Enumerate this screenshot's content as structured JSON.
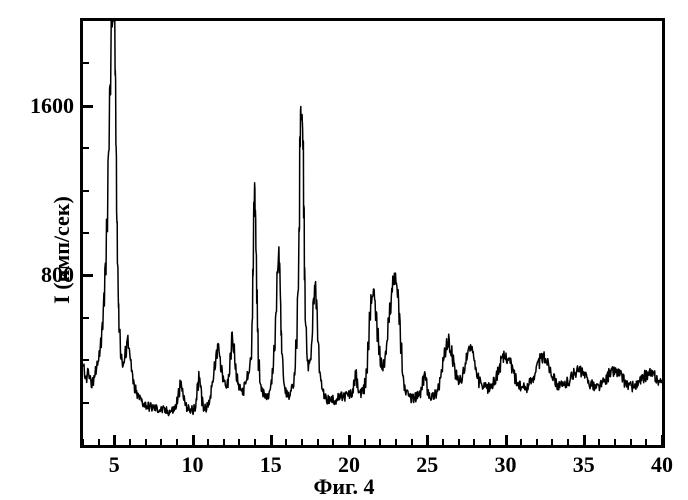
{
  "chart": {
    "type": "line",
    "caption": "Фиг. 4",
    "ylabel": "I (имп/сек)",
    "background_color": "#ffffff",
    "line_color": "#000000",
    "border_color": "#000000",
    "border_width": 3,
    "line_width": 1.5,
    "xlim": [
      3,
      40
    ],
    "ylim": [
      0,
      2000
    ],
    "xticks": [
      5,
      10,
      15,
      20,
      25,
      30,
      35,
      40
    ],
    "yticks": [
      800,
      1600
    ],
    "xtick_label_fontsize": 22,
    "ytick_label_fontsize": 22,
    "ylabel_fontsize": 22,
    "caption_fontsize": 22,
    "font_family": "Times New Roman",
    "font_weight": "bold",
    "tick_length_major": 10,
    "tick_length_minor": 6,
    "x_values": [
      3.0,
      3.1,
      3.2,
      3.3,
      3.4,
      3.5,
      3.6,
      3.7,
      3.8,
      3.9,
      4.0,
      4.1,
      4.2,
      4.3,
      4.4,
      4.5,
      4.6,
      4.7,
      4.8,
      4.9,
      5.0,
      5.05,
      5.1,
      5.15,
      5.2,
      5.25,
      5.3,
      5.4,
      5.5,
      5.6,
      5.7,
      5.8,
      5.9,
      6.0,
      6.1,
      6.2,
      6.3,
      6.4,
      6.5,
      6.6,
      6.7,
      6.8,
      6.9,
      7.0,
      7.1,
      7.2,
      7.3,
      7.4,
      7.5,
      7.6,
      7.7,
      7.8,
      7.9,
      8.0,
      8.1,
      8.2,
      8.3,
      8.4,
      8.5,
      8.6,
      8.7,
      8.8,
      8.9,
      9.0,
      9.1,
      9.2,
      9.3,
      9.4,
      9.5,
      9.6,
      9.7,
      9.8,
      9.9,
      10.0,
      10.1,
      10.2,
      10.3,
      10.4,
      10.5,
      10.6,
      10.7,
      10.8,
      10.9,
      11.0,
      11.1,
      11.2,
      11.3,
      11.4,
      11.5,
      11.6,
      11.7,
      11.8,
      11.9,
      12.0,
      12.1,
      12.2,
      12.3,
      12.4,
      12.5,
      12.6,
      12.7,
      12.8,
      12.9,
      13.0,
      13.1,
      13.2,
      13.3,
      13.4,
      13.5,
      13.6,
      13.7,
      13.8,
      13.85,
      13.9,
      13.95,
      14.0,
      14.05,
      14.1,
      14.15,
      14.2,
      14.3,
      14.4,
      14.5,
      14.6,
      14.7,
      14.8,
      14.9,
      15.0,
      15.1,
      15.2,
      15.3,
      15.4,
      15.5,
      15.55,
      15.6,
      15.65,
      15.7,
      15.8,
      15.9,
      16.0,
      16.1,
      16.2,
      16.3,
      16.4,
      16.5,
      16.6,
      16.7,
      16.8,
      16.85,
      16.9,
      16.95,
      17.0,
      17.05,
      17.1,
      17.15,
      17.2,
      17.3,
      17.4,
      17.5,
      17.6,
      17.7,
      17.8,
      17.9,
      18.0,
      18.1,
      18.2,
      18.3,
      18.4,
      18.5,
      18.6,
      18.7,
      18.8,
      18.9,
      19.0,
      19.1,
      19.2,
      19.3,
      19.4,
      19.5,
      19.6,
      19.7,
      19.8,
      19.9,
      20.0,
      20.1,
      20.2,
      20.3,
      20.4,
      20.5,
      20.6,
      20.7,
      20.8,
      20.9,
      21.0,
      21.1,
      21.2,
      21.3,
      21.4,
      21.5,
      21.6,
      21.7,
      21.8,
      21.9,
      22.0,
      22.1,
      22.2,
      22.3,
      22.4,
      22.5,
      22.6,
      22.7,
      22.8,
      22.9,
      23.0,
      23.1,
      23.2,
      23.3,
      23.4,
      23.5,
      23.6,
      23.7,
      23.8,
      23.9,
      24.0,
      24.1,
      24.2,
      24.3,
      24.4,
      24.5,
      24.6,
      24.7,
      24.8,
      24.9,
      25.0,
      25.1,
      25.2,
      25.3,
      25.4,
      25.5,
      25.6,
      25.7,
      25.8,
      25.9,
      26.0,
      26.1,
      26.2,
      26.3,
      26.4,
      26.5,
      26.6,
      26.7,
      26.8,
      26.9,
      27.0,
      27.1,
      27.2,
      27.3,
      27.4,
      27.5,
      27.6,
      27.7,
      27.8,
      27.9,
      28.0,
      28.1,
      28.2,
      28.3,
      28.4,
      28.5,
      28.6,
      28.7,
      28.8,
      28.9,
      29.0,
      29.1,
      29.2,
      29.3,
      29.4,
      29.5,
      29.6,
      29.7,
      29.8,
      29.9,
      30.0,
      30.1,
      30.2,
      30.3,
      30.4,
      30.5,
      30.6,
      30.7,
      30.8,
      30.9,
      31.0,
      31.1,
      31.2,
      31.3,
      31.4,
      31.5,
      31.6,
      31.7,
      31.8,
      31.9,
      32.0,
      32.1,
      32.2,
      32.3,
      32.4,
      32.5,
      32.6,
      32.7,
      32.8,
      32.9,
      33.0,
      33.1,
      33.2,
      33.3,
      33.4,
      33.5,
      33.6,
      33.7,
      33.8,
      33.9,
      34.0,
      34.1,
      34.2,
      34.3,
      34.4,
      34.5,
      34.6,
      34.7,
      34.8,
      34.9,
      35.0,
      35.1,
      35.2,
      35.3,
      35.4,
      35.5,
      35.6,
      35.7,
      35.8,
      35.9,
      36.0,
      36.1,
      36.2,
      36.3,
      36.4,
      36.5,
      36.6,
      36.7,
      36.8,
      36.9,
      37.0,
      37.1,
      37.2,
      37.3,
      37.4,
      37.5,
      37.6,
      37.7,
      37.8,
      37.9,
      38.0,
      38.1,
      38.2,
      38.3,
      38.4,
      38.5,
      38.6,
      38.7,
      38.8,
      38.9,
      39.0,
      39.1,
      39.2,
      39.3,
      39.4,
      39.5,
      39.6,
      39.7,
      39.8,
      39.9,
      40.0
    ],
    "y_values": [
      355,
      310,
      320,
      345,
      300,
      290,
      300,
      330,
      360,
      380,
      420,
      480,
      560,
      680,
      820,
      1050,
      1350,
      1700,
      2000,
      2150,
      2000,
      1750,
      1400,
      1100,
      860,
      680,
      540,
      430,
      380,
      390,
      440,
      500,
      480,
      400,
      330,
      290,
      260,
      240,
      230,
      220,
      210,
      200,
      195,
      190,
      185,
      182,
      180,
      178,
      176,
      174,
      172,
      170,
      168,
      166,
      164,
      162,
      160,
      160,
      160,
      162,
      164,
      170,
      185,
      210,
      250,
      280,
      260,
      225,
      195,
      178,
      170,
      168,
      166,
      164,
      168,
      200,
      270,
      330,
      280,
      210,
      180,
      170,
      180,
      200,
      235,
      275,
      320,
      370,
      430,
      490,
      430,
      370,
      320,
      290,
      270,
      290,
      350,
      430,
      510,
      450,
      370,
      310,
      280,
      260,
      255,
      260,
      275,
      295,
      320,
      360,
      430,
      560,
      800,
      1100,
      1200,
      1100,
      900,
      700,
      520,
      380,
      300,
      260,
      240,
      230,
      225,
      230,
      250,
      290,
      350,
      450,
      620,
      830,
      900,
      830,
      700,
      550,
      410,
      310,
      265,
      245,
      240,
      245,
      260,
      290,
      350,
      470,
      700,
      1050,
      1400,
      1550,
      1600,
      1550,
      1400,
      1100,
      800,
      560,
      420,
      370,
      400,
      500,
      670,
      780,
      650,
      480,
      350,
      280,
      250,
      230,
      220,
      215,
      212,
      210,
      210,
      212,
      215,
      218,
      222,
      225,
      228,
      230,
      232,
      234,
      236,
      238,
      240,
      250,
      280,
      330,
      290,
      255,
      240,
      245,
      260,
      290,
      350,
      470,
      620,
      700,
      720,
      700,
      620,
      520,
      440,
      390,
      370,
      380,
      420,
      490,
      570,
      650,
      720,
      780,
      800,
      770,
      700,
      590,
      460,
      350,
      280,
      250,
      235,
      228,
      224,
      222,
      222,
      224,
      228,
      234,
      242,
      260,
      300,
      340,
      300,
      260,
      240,
      232,
      230,
      234,
      244,
      260,
      280,
      310,
      350,
      390,
      430,
      470,
      490,
      470,
      440,
      400,
      360,
      330,
      310,
      300,
      302,
      315,
      340,
      380,
      420,
      450,
      460,
      445,
      415,
      380,
      345,
      315,
      295,
      282,
      274,
      270,
      268,
      268,
      270,
      275,
      283,
      294,
      310,
      330,
      350,
      370,
      390,
      405,
      415,
      418,
      414,
      402,
      384,
      362,
      338,
      316,
      298,
      284,
      275,
      270,
      268,
      269,
      273,
      280,
      290,
      303,
      318,
      336,
      355,
      374,
      390,
      402,
      410,
      413,
      410,
      400,
      385,
      366,
      346,
      327,
      310,
      297,
      287,
      281,
      278,
      277,
      280,
      287,
      296,
      305,
      315,
      325,
      334,
      342,
      347,
      349,
      349,
      345,
      338,
      329,
      319,
      308,
      298,
      289,
      282,
      278,
      275,
      274,
      276,
      280,
      286,
      294,
      303,
      313,
      323,
      333,
      341,
      347,
      350,
      350,
      346,
      340,
      331,
      321,
      310,
      300,
      291,
      284,
      279,
      276,
      275,
      276,
      279,
      284,
      291,
      299,
      308,
      317,
      325,
      331,
      335,
      336,
      335,
      330,
      323,
      315,
      306,
      297,
      289,
      283,
      278,
      276,
      275,
      277,
      281,
      287,
      295,
      303,
      312,
      320,
      327,
      332,
      260
    ]
  }
}
